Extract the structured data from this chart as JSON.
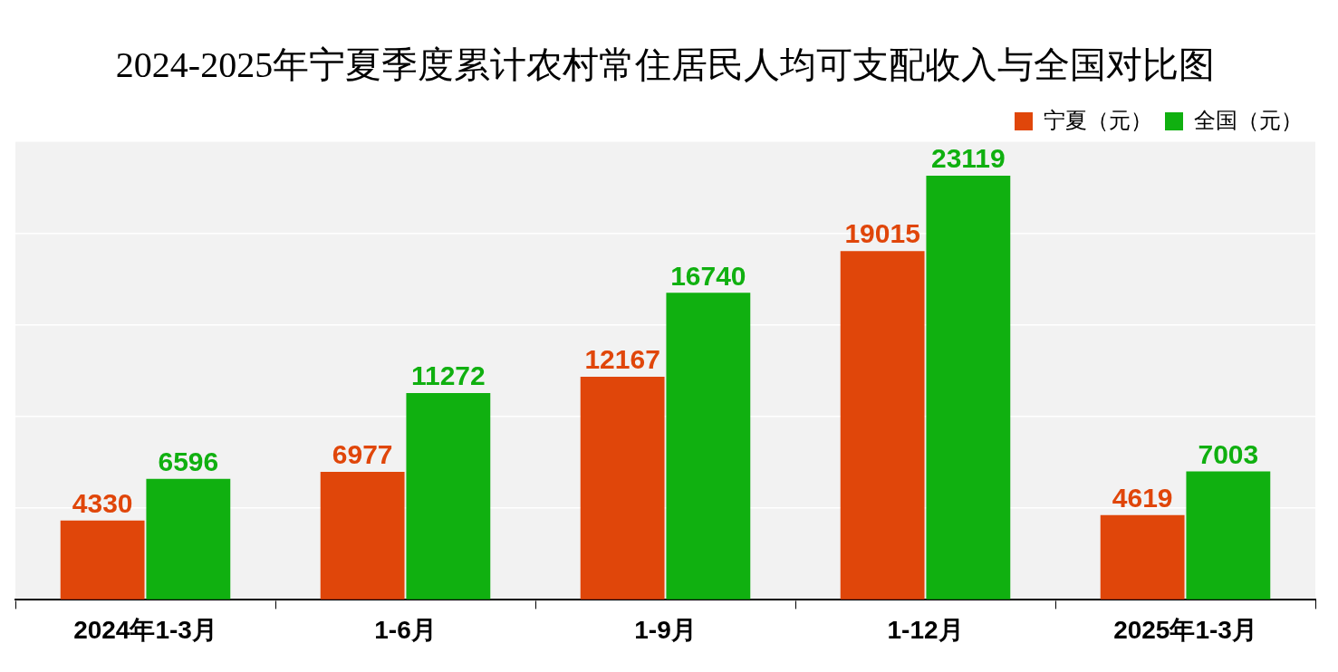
{
  "chart_data": {
    "type": "bar",
    "title": "2024-2025年宁夏季度累计农村常住居民人均可支配收入与全国对比图",
    "categories": [
      "2024年1-3月",
      "1-6月",
      "1-9月",
      "1-12月",
      "2025年1-3月"
    ],
    "series": [
      {
        "name": "宁夏（元）",
        "color": "#e0460a",
        "values": [
          4330,
          6977,
          12167,
          19015,
          4619
        ]
      },
      {
        "name": "全国（元）",
        "color": "#10b010",
        "values": [
          6596,
          11272,
          16740,
          23119,
          7003
        ]
      }
    ],
    "ylim": [
      0,
      25000
    ],
    "yticks": [
      {
        "value": 0,
        "label": null
      },
      {
        "value": 5000,
        "label": null
      },
      {
        "value": 10000,
        "label": null
      },
      {
        "value": 15000,
        "label": null
      },
      {
        "value": 20000,
        "label": null
      },
      {
        "value": 25000,
        "label": null
      }
    ],
    "tick_labels": "x",
    "grid": "y",
    "legend": "top right",
    "data_labels": true
  }
}
